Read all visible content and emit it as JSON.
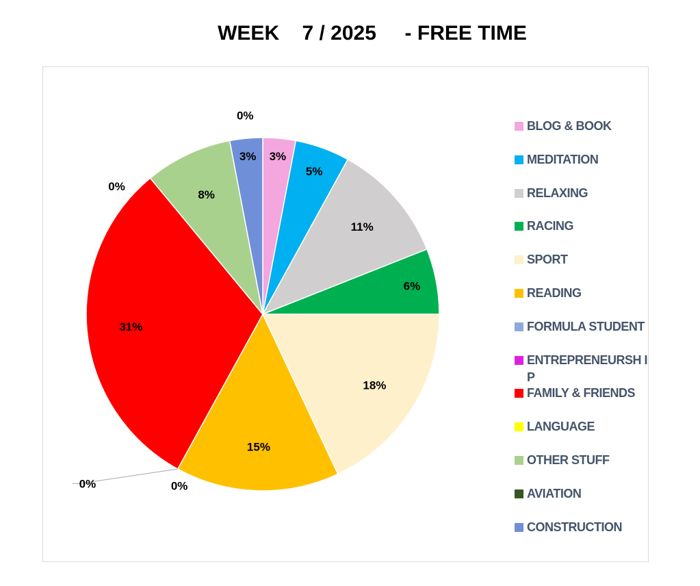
{
  "chart_data": {
    "type": "pie",
    "title": "WEEK    7 / 2025     - FREE TIME",
    "categories": [
      "BLOG & BOOK",
      "MEDITATION",
      "RELAXING",
      "RACING",
      "SPORT",
      "READING",
      "FORMULA STUDENT",
      "ENTREPRENEURSHIP",
      "FAMILY & FRIENDS",
      "LANGUAGE",
      "OTHER STUFF",
      "AVIATION",
      "CONSTRUCTION"
    ],
    "legend_labels": [
      "BLOG & BOOK",
      "MEDITATION",
      "RELAXING",
      "RACING",
      "SPORT",
      "READING",
      "FORMULA STUDENT",
      "ENTREPRENEURSH IP",
      "FAMILY & FRIENDS",
      "LANGUAGE",
      "OTHER STUFF",
      "AVIATION",
      "CONSTRUCTION"
    ],
    "values": [
      3,
      5,
      11,
      6,
      18,
      15,
      0,
      0,
      31,
      0,
      8,
      0,
      3
    ],
    "data_labels": [
      "3%",
      "5%",
      "11%",
      "6%",
      "18%",
      "15%",
      "0%",
      "0%",
      "31%",
      "0%",
      "8%",
      "0%",
      "3%"
    ],
    "colors": [
      "#f4a6de",
      "#00b0f0",
      "#d0cece",
      "#00b050",
      "#fff0cc",
      "#ffc000",
      "#8eaadb",
      "#e020e0",
      "#ff0000",
      "#ffff00",
      "#a9d18e",
      "#375623",
      "#6f8fd8"
    ],
    "legend_position": "right"
  }
}
